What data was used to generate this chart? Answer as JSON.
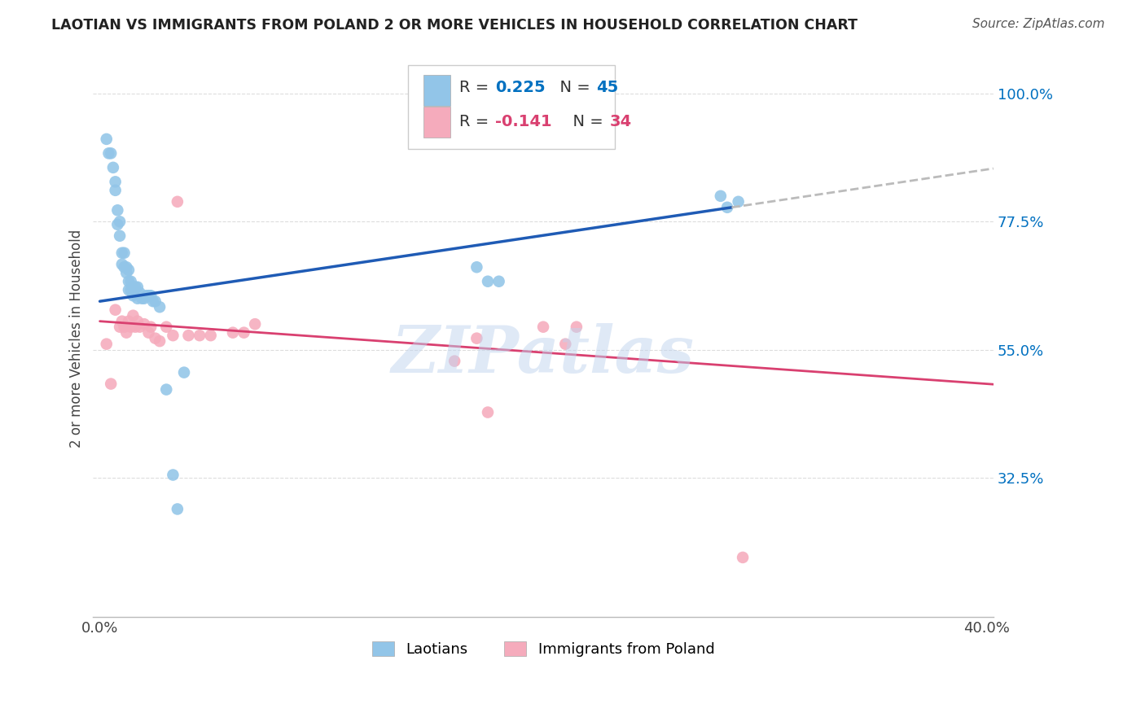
{
  "title": "LAOTIAN VS IMMIGRANTS FROM POLAND 2 OR MORE VEHICLES IN HOUSEHOLD CORRELATION CHART",
  "source": "Source: ZipAtlas.com",
  "ylabel": "2 or more Vehicles in Household",
  "xlim": [
    -0.003,
    0.403
  ],
  "ylim": [
    0.08,
    1.06
  ],
  "yticks": [
    0.325,
    0.55,
    0.775,
    1.0
  ],
  "ytick_labels": [
    "32.5%",
    "55.0%",
    "77.5%",
    "100.0%"
  ],
  "xtick_vals": [
    0.0,
    0.05,
    0.1,
    0.15,
    0.2,
    0.25,
    0.3,
    0.35,
    0.4
  ],
  "xtick_labels": [
    "0.0%",
    "",
    "",
    "",
    "",
    "",
    "",
    "",
    "40.0%"
  ],
  "blue_color": "#92C5E8",
  "pink_color": "#F5ABBC",
  "blue_line_color": "#1F5BB5",
  "pink_line_color": "#D94070",
  "dash_color": "#BBBBBB",
  "accent_blue": "#0070C0",
  "accent_pink": "#D94070",
  "blue_x": [
    0.003,
    0.004,
    0.005,
    0.006,
    0.007,
    0.007,
    0.008,
    0.008,
    0.009,
    0.009,
    0.01,
    0.01,
    0.011,
    0.011,
    0.012,
    0.012,
    0.013,
    0.013,
    0.013,
    0.014,
    0.014,
    0.015,
    0.015,
    0.016,
    0.017,
    0.017,
    0.018,
    0.019,
    0.02,
    0.021,
    0.022,
    0.023,
    0.024,
    0.025,
    0.027,
    0.03,
    0.033,
    0.035,
    0.038,
    0.17,
    0.175,
    0.18,
    0.28,
    0.283,
    0.288
  ],
  "blue_y": [
    0.92,
    0.895,
    0.895,
    0.87,
    0.845,
    0.83,
    0.795,
    0.77,
    0.775,
    0.75,
    0.72,
    0.7,
    0.72,
    0.695,
    0.695,
    0.685,
    0.69,
    0.67,
    0.655,
    0.67,
    0.655,
    0.66,
    0.645,
    0.66,
    0.66,
    0.64,
    0.65,
    0.64,
    0.64,
    0.645,
    0.645,
    0.645,
    0.635,
    0.635,
    0.625,
    0.48,
    0.33,
    0.27,
    0.51,
    0.695,
    0.67,
    0.67,
    0.82,
    0.8,
    0.81
  ],
  "pink_x": [
    0.003,
    0.005,
    0.007,
    0.009,
    0.01,
    0.011,
    0.012,
    0.013,
    0.014,
    0.015,
    0.016,
    0.017,
    0.018,
    0.02,
    0.022,
    0.023,
    0.025,
    0.027,
    0.03,
    0.033,
    0.035,
    0.04,
    0.045,
    0.05,
    0.06,
    0.065,
    0.07,
    0.16,
    0.17,
    0.175,
    0.2,
    0.21,
    0.215,
    0.29
  ],
  "pink_y": [
    0.56,
    0.49,
    0.62,
    0.59,
    0.6,
    0.59,
    0.58,
    0.6,
    0.59,
    0.61,
    0.59,
    0.6,
    0.59,
    0.595,
    0.58,
    0.59,
    0.57,
    0.565,
    0.59,
    0.575,
    0.81,
    0.575,
    0.575,
    0.575,
    0.58,
    0.58,
    0.595,
    0.53,
    0.57,
    0.44,
    0.59,
    0.56,
    0.59,
    0.185
  ],
  "watermark": "ZIPatlas",
  "bg_color": "#FFFFFF",
  "grid_color": "#DDDDDD",
  "blue_line_x0": 0.0,
  "blue_line_x_solid_end": 0.285,
  "blue_line_x_dash_end": 0.403,
  "pink_line_x0": 0.0,
  "pink_line_x_end": 0.403
}
